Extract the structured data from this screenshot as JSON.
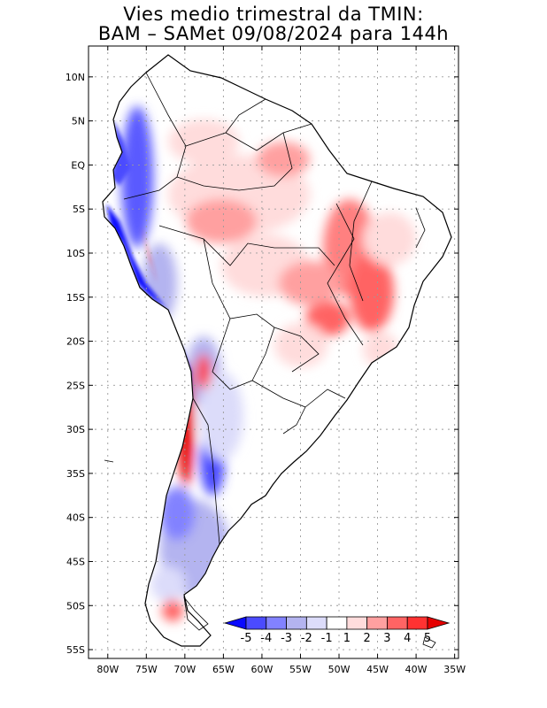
{
  "title_line1": "Vies medio trimestral da TMIN:",
  "title_line2": "BAM – SAMet 09/08/2024  para 144h",
  "lat_labels": [
    "10N",
    "5N",
    "EQ",
    "5S",
    "10S",
    "15S",
    "20S",
    "25S",
    "30S",
    "35S",
    "40S",
    "45S",
    "50S",
    "55S"
  ],
  "lat_values": [
    10,
    5,
    0,
    -5,
    -10,
    -15,
    -20,
    -25,
    -30,
    -35,
    -40,
    -45,
    -50,
    -55
  ],
  "lon_labels": [
    "80W",
    "75W",
    "70W",
    "65W",
    "60W",
    "55W",
    "50W",
    "45W",
    "40W",
    "35W"
  ],
  "lon_values": [
    -80,
    -75,
    -70,
    -65,
    -60,
    -55,
    -50,
    -45,
    -40,
    -35
  ],
  "map_extent": {
    "lon_min": -82.5,
    "lon_max": -34.5,
    "lat_min": -56,
    "lat_max": 13.5
  },
  "colorbar": {
    "labels": [
      "-5",
      "-4",
      "-3",
      "-2",
      "-1",
      "1",
      "2",
      "3",
      "4",
      "5"
    ],
    "colors": [
      "#0a0aff",
      "#4b4bff",
      "#8282ff",
      "#b4b4f0",
      "#dcdcfa",
      "#ffffff",
      "#ffdcdc",
      "#ffa0a0",
      "#ff6464",
      "#ff3232",
      "#e60000"
    ]
  }
}
